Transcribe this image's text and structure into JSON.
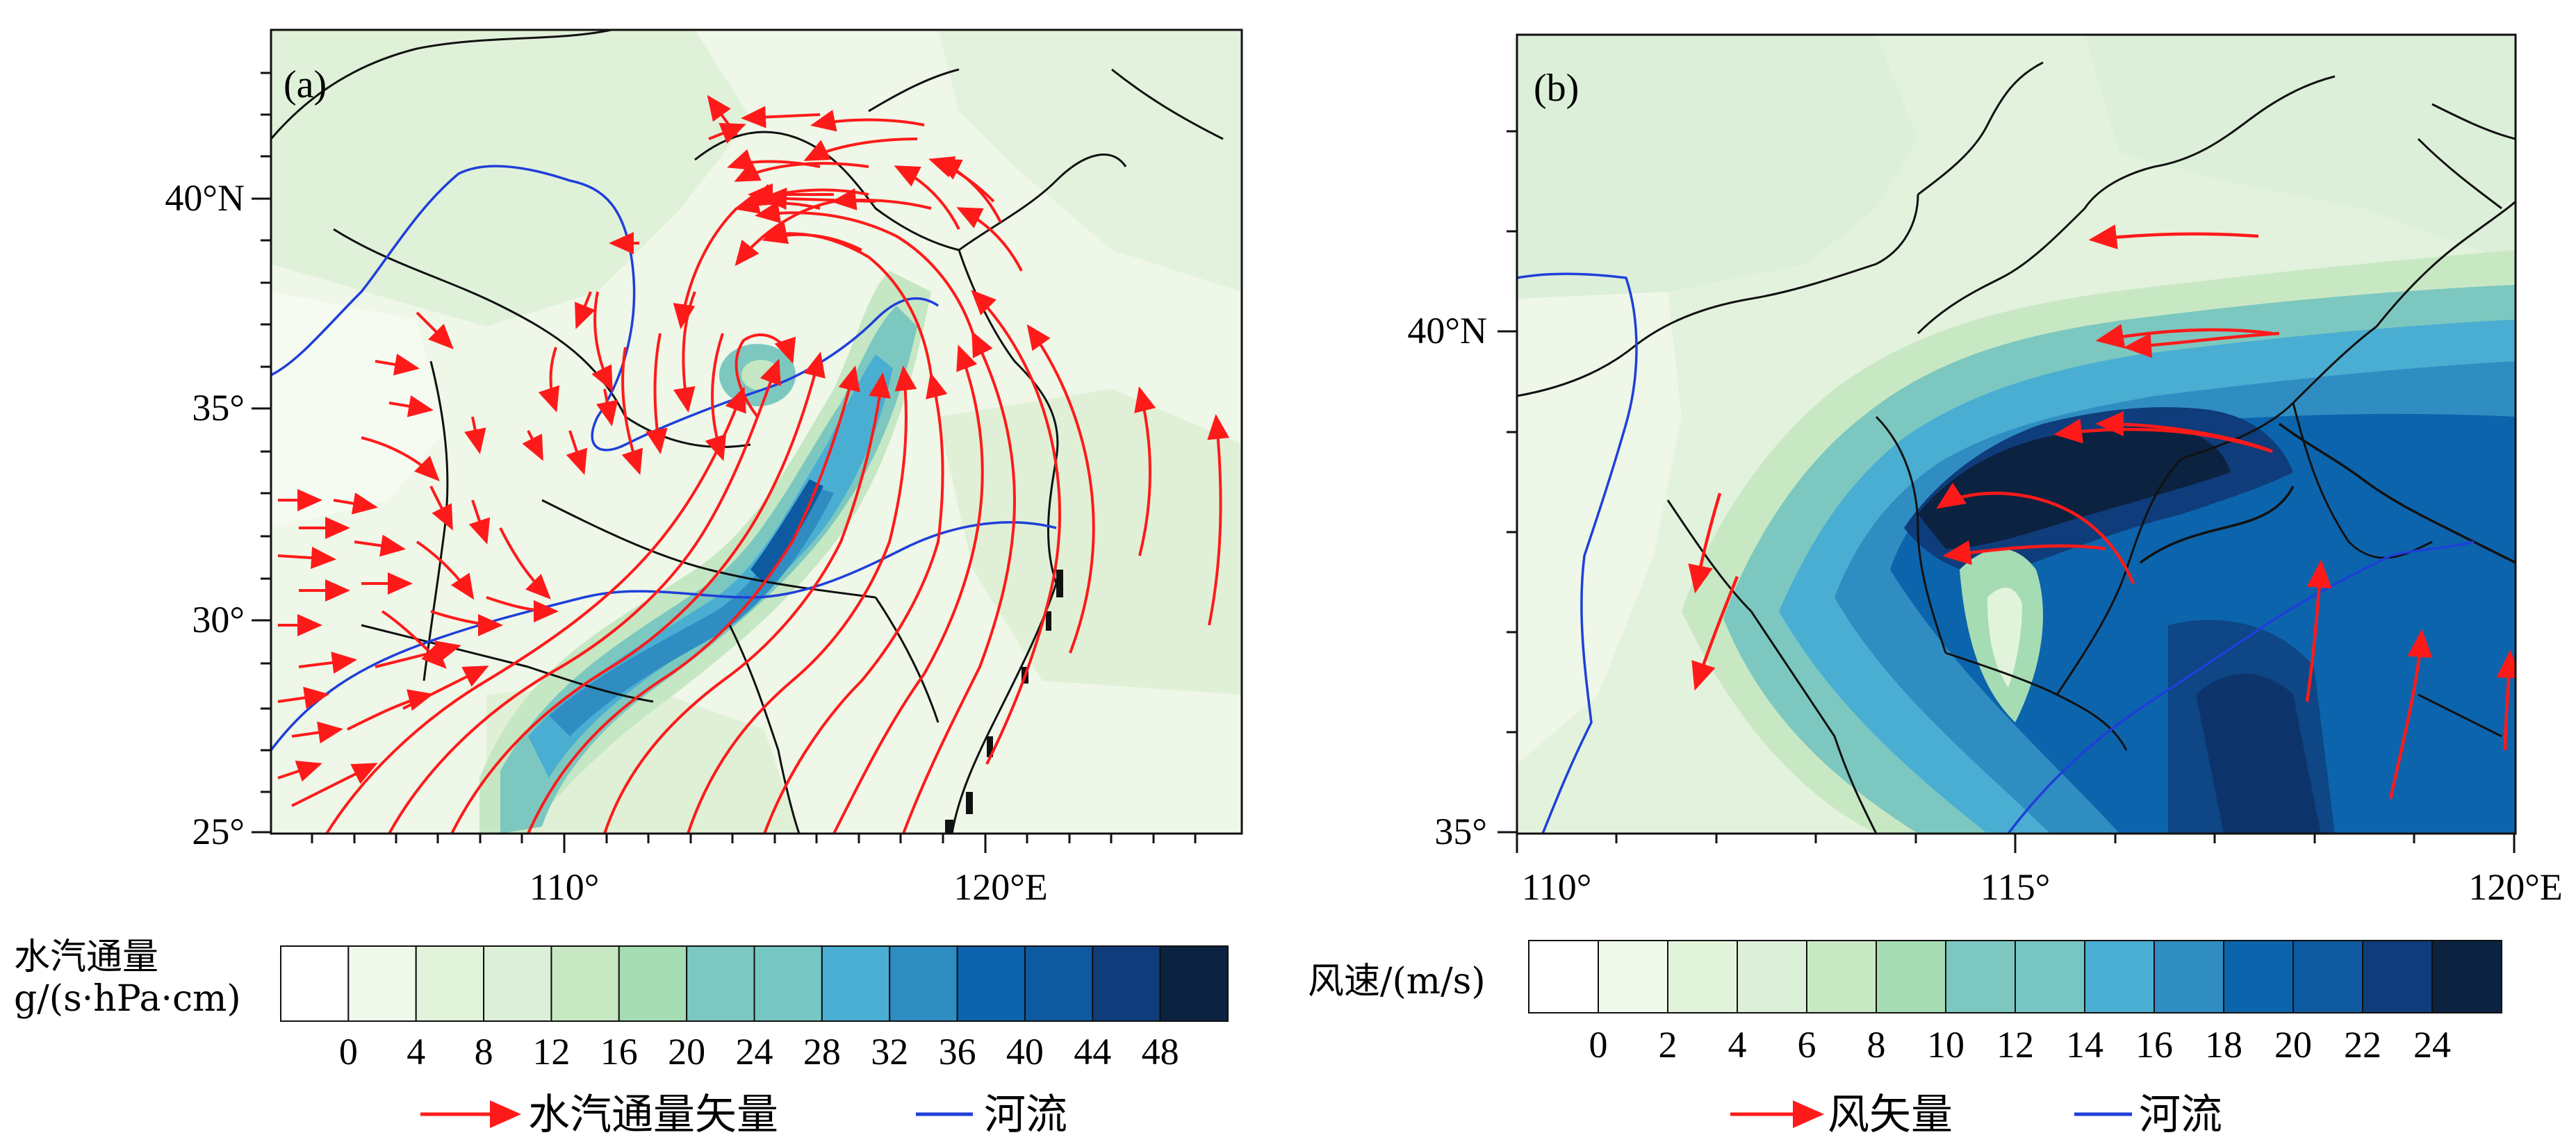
{
  "panels": [
    {
      "id": "a",
      "tag": "(a)",
      "y_ticks": [
        "25°",
        "30°",
        "35°",
        "40°N"
      ],
      "x_ticks": [
        "110°",
        "120°E"
      ],
      "colorbar_title_line1": "水汽通量",
      "colorbar_title_line2": "g/(s·hPa·cm)",
      "colorbar_labels": [
        "0",
        "4",
        "8",
        "12",
        "16",
        "20",
        "24",
        "28",
        "32",
        "36",
        "40",
        "44",
        "48"
      ],
      "colorbar_colors": [
        "#ffffff",
        "#f1f9ec",
        "#e2f3dc",
        "#dcefd8",
        "#c8e8c4",
        "#a6dcb4",
        "#7cc8c0",
        "#76c6c4",
        "#4aaed2",
        "#2f8dc2",
        "#0c64ac",
        "#0d5aa0",
        "#0f3c7a",
        "#0b2240"
      ],
      "legend": {
        "vector_label": "水汽通量矢量",
        "river_label": "河流"
      }
    },
    {
      "id": "b",
      "tag": "(b)",
      "y_ticks": [
        "35°",
        "40°N"
      ],
      "x_ticks": [
        "110°",
        "115°",
        "120°E"
      ],
      "colorbar_title": "风速/(m/s)",
      "colorbar_labels": [
        "0",
        "2",
        "4",
        "6",
        "8",
        "10",
        "12",
        "14",
        "16",
        "18",
        "20",
        "22",
        "24"
      ],
      "colorbar_colors": [
        "#ffffff",
        "#f1f9ec",
        "#e2f3dc",
        "#dcefd8",
        "#c8e8c4",
        "#a6dcb4",
        "#7cc8c0",
        "#76c6c4",
        "#4aaed2",
        "#2f8dc2",
        "#0c64ac",
        "#0d5aa0",
        "#0f3c7a",
        "#0b2240"
      ],
      "legend": {
        "vector_label": "风矢量",
        "river_label": "河流"
      }
    }
  ],
  "colors": {
    "vector": "#ff1a1a",
    "river": "#1f3fd9",
    "border": "#111111"
  }
}
